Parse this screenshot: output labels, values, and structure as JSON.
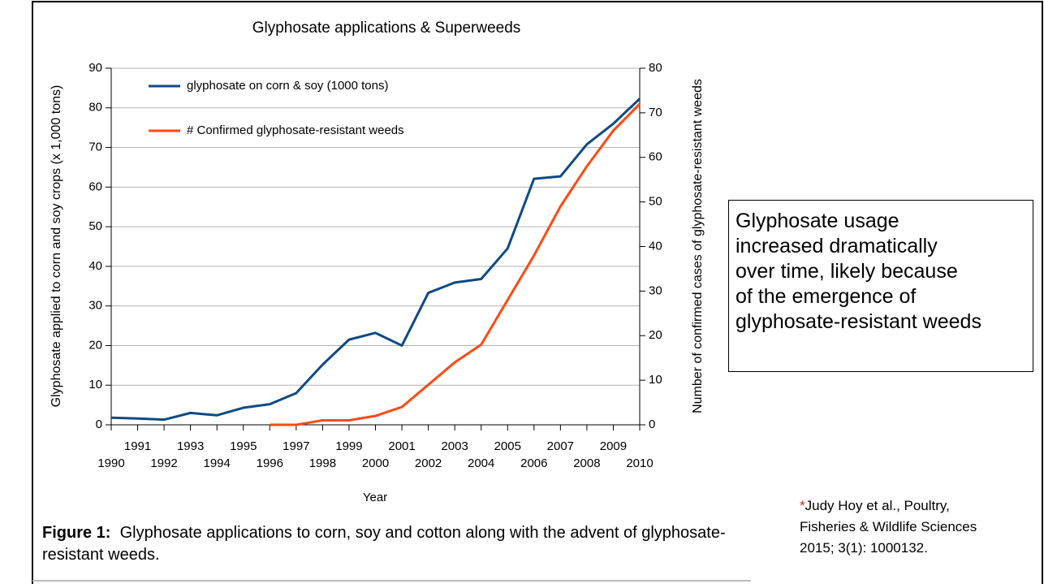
{
  "chart_data": {
    "type": "line",
    "title": "Glyphosate applications & Superweeds",
    "xlabel": "Year",
    "ylabel": "Glyphosate applied to corn and soy crops (x 1,000 tons)",
    "y2label": "Number of confirmed cases of glyphosate-resistant weeds",
    "x": [
      1990,
      1991,
      1992,
      1993,
      1994,
      1995,
      1996,
      1997,
      1998,
      1999,
      2000,
      2001,
      2002,
      2003,
      2004,
      2005,
      2006,
      2007,
      2008,
      2009,
      2010
    ],
    "xlim": [
      1990,
      2010
    ],
    "xticks": [
      1990,
      1991,
      1992,
      1993,
      1994,
      1995,
      1996,
      1997,
      1998,
      1999,
      2000,
      2001,
      2002,
      2003,
      2004,
      2005,
      2006,
      2007,
      2008,
      2009,
      2010
    ],
    "ylim": [
      0,
      90
    ],
    "yticks": [
      0,
      10,
      20,
      30,
      40,
      50,
      60,
      70,
      80,
      90
    ],
    "y2lim": [
      0,
      80
    ],
    "y2ticks": [
      0,
      10,
      20,
      30,
      40,
      50,
      60,
      70,
      80
    ],
    "grid": true,
    "legend": "upper left",
    "series": [
      {
        "name": "glyphosate on corn & soy (1000 tons)",
        "color": "#0e4a84",
        "values": [
          1.8,
          1.6,
          1.3,
          3.0,
          2.4,
          4.3,
          5.2,
          8.0,
          15.2,
          21.5,
          23.2,
          20.0,
          33.3,
          35.9,
          36.8,
          44.5,
          62.1,
          62.7,
          70.8,
          76.0,
          82.3
        ]
      },
      {
        "name": "# Confirmed glyphosate-resistant weeds",
        "color": "#ff4a12",
        "axis": "y2",
        "values": [
          null,
          null,
          null,
          null,
          null,
          null,
          0,
          0,
          1,
          1,
          2,
          4,
          9,
          14,
          18,
          28,
          38,
          49,
          58,
          66,
          72
        ]
      }
    ]
  },
  "text_box": {
    "lines": [
      "Glyphosate usage",
      "increased dramatically",
      "over time, likely because",
      "of  the emergence of",
      "glyphosate-resistant weeds"
    ]
  },
  "caption": {
    "label": "Figure 1:",
    "text": "Glyphosate applications to corn, soy and cotton along with the advent of glyphosate-resistant weeds."
  },
  "citation": {
    "marker": "*",
    "lines": [
      "Judy Hoy et al., Poultry,",
      "Fisheries & Wildlife Sciences",
      "2015; 3(1): 1000132."
    ]
  }
}
